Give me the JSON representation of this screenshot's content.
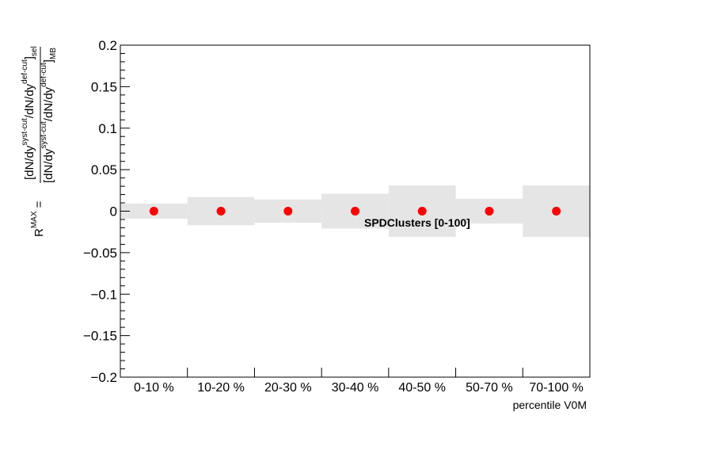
{
  "chart_data": {
    "type": "scatter",
    "categories": [
      "0-10 %",
      "10-20 %",
      "20-30 %",
      "30-40 %",
      "40-50 %",
      "50-70 %",
      "70-100 %"
    ],
    "series": [
      {
        "values": [
          0,
          0,
          0,
          0,
          0,
          0,
          0
        ],
        "uncertainty": [
          0.009,
          0.017,
          0.014,
          0.021,
          0.031,
          0.015,
          0.031
        ],
        "color": "#ff0000",
        "band_color": "#e5e5e5"
      }
    ],
    "ylim": [
      -0.2,
      0.2
    ],
    "yticks": [
      "0.2",
      "0.15",
      "0.1",
      "0.05",
      "0",
      "−0.05",
      "−0.1",
      "−0.15",
      "−0.2"
    ],
    "ytick_values": [
      0.2,
      0.15,
      0.1,
      0.05,
      0,
      -0.05,
      -0.1,
      -0.15,
      -0.2
    ],
    "xlabel": "percentile V0M",
    "ylabel": {
      "prefix": "R",
      "prefix_sup": "MAX",
      "num_open": "[dN/dy",
      "num_sup1": "syst-cut",
      "num_mid": "/dN/dy",
      "num_sup2": "def-cut",
      "num_close": "]",
      "num_sub": "sel",
      "den_open": "[dN/dy",
      "den_sup1": "syst-cut",
      "den_mid": "/dN/dy",
      "den_sup2": "def-cut",
      "den_close": "]",
      "den_sub": "MB"
    },
    "annotation": "SPDClusters [0-100]",
    "grid": false
  }
}
